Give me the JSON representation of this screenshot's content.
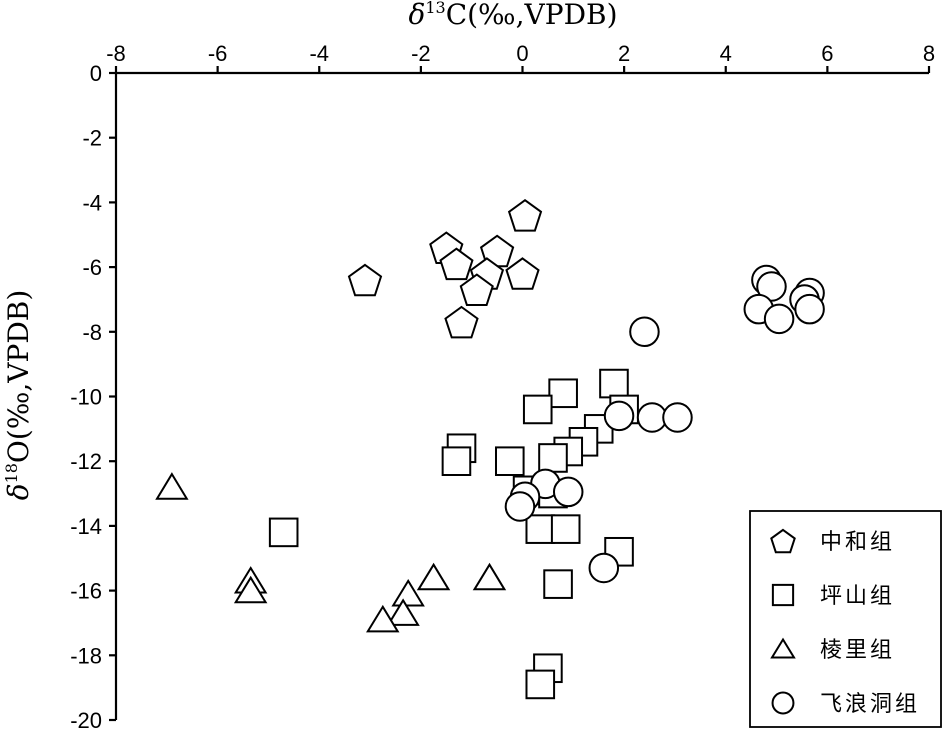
{
  "chart_data": {
    "type": "scatter",
    "xlabel": {
      "prefix": "δ",
      "sup": "13",
      "rest": "C(‰,VPDB)"
    },
    "ylabel": {
      "prefix": "δ",
      "sup": "18",
      "rest": "O(‰,VPDB)"
    },
    "xlim": [
      -8,
      8
    ],
    "ylim": [
      -20,
      0
    ],
    "x_axis_position": "top",
    "x_ticks": [
      -8,
      -6,
      -4,
      -2,
      0,
      2,
      4,
      6,
      8
    ],
    "x_tick_labels": [
      "-8",
      "-6",
      "-4",
      "-2",
      "0",
      "2",
      "4",
      "6",
      "8"
    ],
    "y_ticks": [
      0,
      -2,
      -4,
      -6,
      -8,
      -10,
      -12,
      -14,
      -16,
      -18,
      -20
    ],
    "y_tick_labels": [
      "0",
      "-2",
      "-4",
      "-6",
      "-8",
      "-10",
      "-12",
      "-14",
      "-16",
      "-18",
      "-20"
    ],
    "grid": false,
    "legend_position": "bottom-right",
    "series": [
      {
        "name": "中和组",
        "marker": "pentagon",
        "points": [
          [
            0.05,
            -4.4
          ],
          [
            -1.5,
            -5.4
          ],
          [
            -1.3,
            -5.9
          ],
          [
            -0.5,
            -5.5
          ],
          [
            -0.7,
            -6.2
          ],
          [
            -0.9,
            -6.7
          ],
          [
            -3.1,
            -6.4
          ],
          [
            0.0,
            -6.2
          ],
          [
            -1.2,
            -7.7
          ]
        ]
      },
      {
        "name": "坪山组",
        "marker": "square",
        "points": [
          [
            1.8,
            -9.6
          ],
          [
            0.8,
            -9.9
          ],
          [
            0.3,
            -10.4
          ],
          [
            2.0,
            -10.4
          ],
          [
            1.5,
            -11.0
          ],
          [
            1.2,
            -11.4
          ],
          [
            -1.2,
            -11.6
          ],
          [
            0.9,
            -11.7
          ],
          [
            0.6,
            -11.9
          ],
          [
            -1.3,
            -12.0
          ],
          [
            -0.25,
            -12.0
          ],
          [
            0.1,
            -12.9
          ],
          [
            0.6,
            -13.0
          ],
          [
            0.35,
            -14.1
          ],
          [
            0.85,
            -14.1
          ],
          [
            -4.7,
            -14.2
          ],
          [
            1.9,
            -14.8
          ],
          [
            0.7,
            -15.8
          ],
          [
            0.5,
            -18.4
          ],
          [
            0.35,
            -18.9
          ]
        ]
      },
      {
        "name": "棱里组",
        "marker": "triangle",
        "points": [
          [
            -6.9,
            -12.8
          ],
          [
            -5.35,
            -15.7
          ],
          [
            -5.35,
            -16.0
          ],
          [
            -1.75,
            -15.6
          ],
          [
            -0.65,
            -15.6
          ],
          [
            -2.25,
            -16.1
          ],
          [
            -2.35,
            -16.7
          ],
          [
            -2.75,
            -16.9
          ]
        ]
      },
      {
        "name": "飞浪洞组",
        "marker": "circle",
        "points": [
          [
            4.8,
            -6.4
          ],
          [
            5.65,
            -6.8
          ],
          [
            4.9,
            -6.6
          ],
          [
            5.55,
            -7.0
          ],
          [
            4.65,
            -7.3
          ],
          [
            5.65,
            -7.3
          ],
          [
            5.05,
            -7.6
          ],
          [
            2.4,
            -8.0
          ],
          [
            1.9,
            -10.6
          ],
          [
            2.55,
            -10.65
          ],
          [
            3.05,
            -10.65
          ],
          [
            0.45,
            -12.7
          ],
          [
            0.9,
            -12.95
          ],
          [
            0.05,
            -13.1
          ],
          [
            -0.05,
            -13.4
          ],
          [
            1.6,
            -15.3
          ]
        ]
      }
    ]
  }
}
